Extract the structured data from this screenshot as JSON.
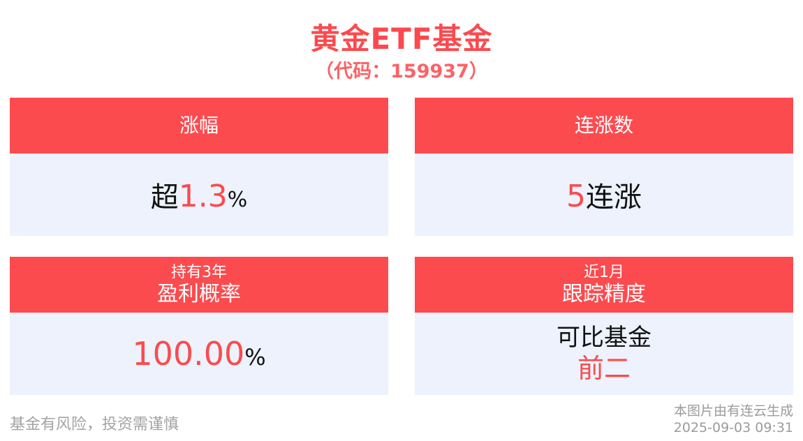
{
  "page": {
    "title": "黄金ETF基金",
    "subtitle": "（代码：159937）"
  },
  "cards": {
    "rise": {
      "header": "涨幅",
      "value_prefix": "超",
      "value_highlight": "1.3",
      "value_suffix": "%"
    },
    "streak": {
      "header": "连涨数",
      "value_highlight": "5",
      "value_suffix": "连涨"
    },
    "profit": {
      "header_small": "持有3年",
      "header_main": "盈利概率",
      "value_highlight": "100.00",
      "value_suffix": "%"
    },
    "tracking": {
      "header_small": "近1月",
      "header_main": "跟踪精度",
      "value_line1": "可比基金",
      "value_line2": "前二"
    }
  },
  "footer": {
    "disclaimer": "基金有风险，投资需谨慎",
    "credit": "本图片由有连云生成",
    "timestamp": "2025-09-03 09:31"
  },
  "colors": {
    "accent_red": "#fc4b4f",
    "value_red": "#fa4b4e",
    "card_body_bg": "#edf2fc",
    "text_dark": "#111111",
    "text_gray": "#a3a3a3",
    "page_bg": "#ffffff"
  }
}
